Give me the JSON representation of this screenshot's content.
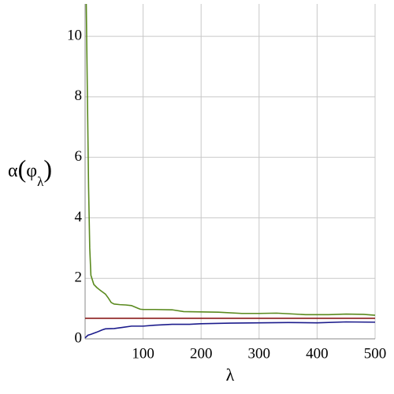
{
  "chart_data": {
    "type": "line",
    "xlabel": "λ",
    "ylabel": [
      "α",
      "(",
      "φ",
      "λ",
      ")"
    ],
    "xlim": [
      0,
      500
    ],
    "xticks": [
      100,
      200,
      300,
      400,
      500
    ],
    "ylim": [
      0,
      11.07
    ],
    "yticks": [
      0,
      2,
      4,
      6,
      8,
      10
    ],
    "grid": true,
    "series": [
      {
        "name": "red",
        "color": "#8b1c1c",
        "x": [
          0,
          500
        ],
        "values": [
          0.68,
          0.68
        ]
      },
      {
        "name": "green",
        "color": "#5a8a1e",
        "x": [
          2,
          4,
          6,
          8,
          10,
          15,
          20,
          25,
          30,
          35,
          40,
          45,
          50,
          60,
          70,
          80,
          90,
          95,
          100,
          120,
          150,
          170,
          200,
          230,
          270,
          300,
          330,
          350,
          380,
          420,
          450,
          480,
          500
        ],
        "values": [
          11.07,
          8.0,
          5.0,
          3.0,
          2.1,
          1.8,
          1.7,
          1.62,
          1.55,
          1.48,
          1.35,
          1.2,
          1.15,
          1.13,
          1.12,
          1.1,
          1.02,
          0.98,
          0.97,
          0.97,
          0.96,
          0.9,
          0.89,
          0.88,
          0.84,
          0.84,
          0.85,
          0.83,
          0.8,
          0.8,
          0.82,
          0.81,
          0.78
        ]
      },
      {
        "name": "blue",
        "color": "#1c1c8c",
        "x": [
          0,
          5,
          10,
          20,
          30,
          35,
          50,
          65,
          80,
          100,
          120,
          150,
          180,
          200,
          250,
          300,
          350,
          400,
          450,
          500
        ],
        "values": [
          0.03,
          0.12,
          0.15,
          0.22,
          0.3,
          0.33,
          0.34,
          0.38,
          0.42,
          0.42,
          0.45,
          0.48,
          0.48,
          0.5,
          0.52,
          0.53,
          0.54,
          0.53,
          0.56,
          0.55
        ]
      }
    ]
  }
}
